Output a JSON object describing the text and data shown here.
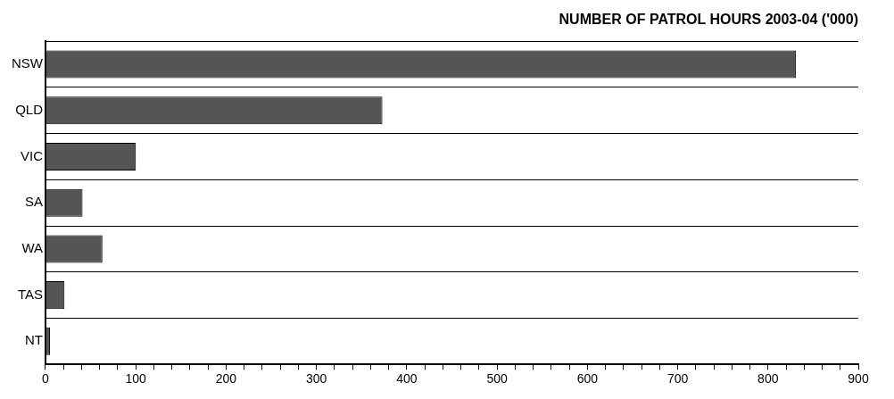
{
  "chart_data": {
    "type": "bar",
    "orientation": "horizontal",
    "title": "NUMBER OF PATROL HOURS 2003-04 ('000)",
    "categories": [
      "NSW",
      "QLD",
      "VIC",
      "SA",
      "WA",
      "TAS",
      "NT"
    ],
    "values": [
      831,
      373,
      100,
      41,
      63,
      21,
      5
    ],
    "color": "#555555",
    "xlim": [
      0,
      900
    ],
    "xticks": [
      0,
      {
        "value": 20,
        "label": null
      },
      {
        "value": 40,
        "label": null
      },
      {
        "value": 60,
        "label": null
      },
      {
        "value": 80,
        "label": null
      },
      100,
      {
        "value": 120,
        "label": null
      },
      {
        "value": 140,
        "label": null
      },
      {
        "value": 160,
        "label": null
      },
      {
        "value": 180,
        "label": null
      },
      200,
      {
        "value": 220,
        "label": null
      },
      {
        "value": 240,
        "label": null
      },
      {
        "value": 260,
        "label": null
      },
      {
        "value": 280,
        "label": null
      },
      300,
      {
        "value": 320,
        "label": null
      },
      {
        "value": 340,
        "label": null
      },
      {
        "value": 360,
        "label": null
      },
      {
        "value": 380,
        "label": null
      },
      400,
      {
        "value": 420,
        "label": null
      },
      {
        "value": 440,
        "label": null
      },
      {
        "value": 460,
        "label": null
      },
      {
        "value": 480,
        "label": null
      },
      500,
      {
        "value": 520,
        "label": null
      },
      {
        "value": 540,
        "label": null
      },
      {
        "value": 560,
        "label": null
      },
      {
        "value": 580,
        "label": null
      },
      600,
      {
        "value": 620,
        "label": null
      },
      {
        "value": 640,
        "label": null
      },
      {
        "value": 660,
        "label": null
      },
      {
        "value": 680,
        "label": null
      },
      700,
      {
        "value": 720,
        "label": null
      },
      {
        "value": 740,
        "label": null
      },
      {
        "value": 760,
        "label": null
      },
      {
        "value": 780,
        "label": null
      },
      800,
      {
        "value": 820,
        "label": null
      },
      {
        "value": 840,
        "label": null
      },
      {
        "value": 860,
        "label": null
      },
      {
        "value": 880,
        "label": null
      },
      900
    ],
    "grid": "y"
  }
}
